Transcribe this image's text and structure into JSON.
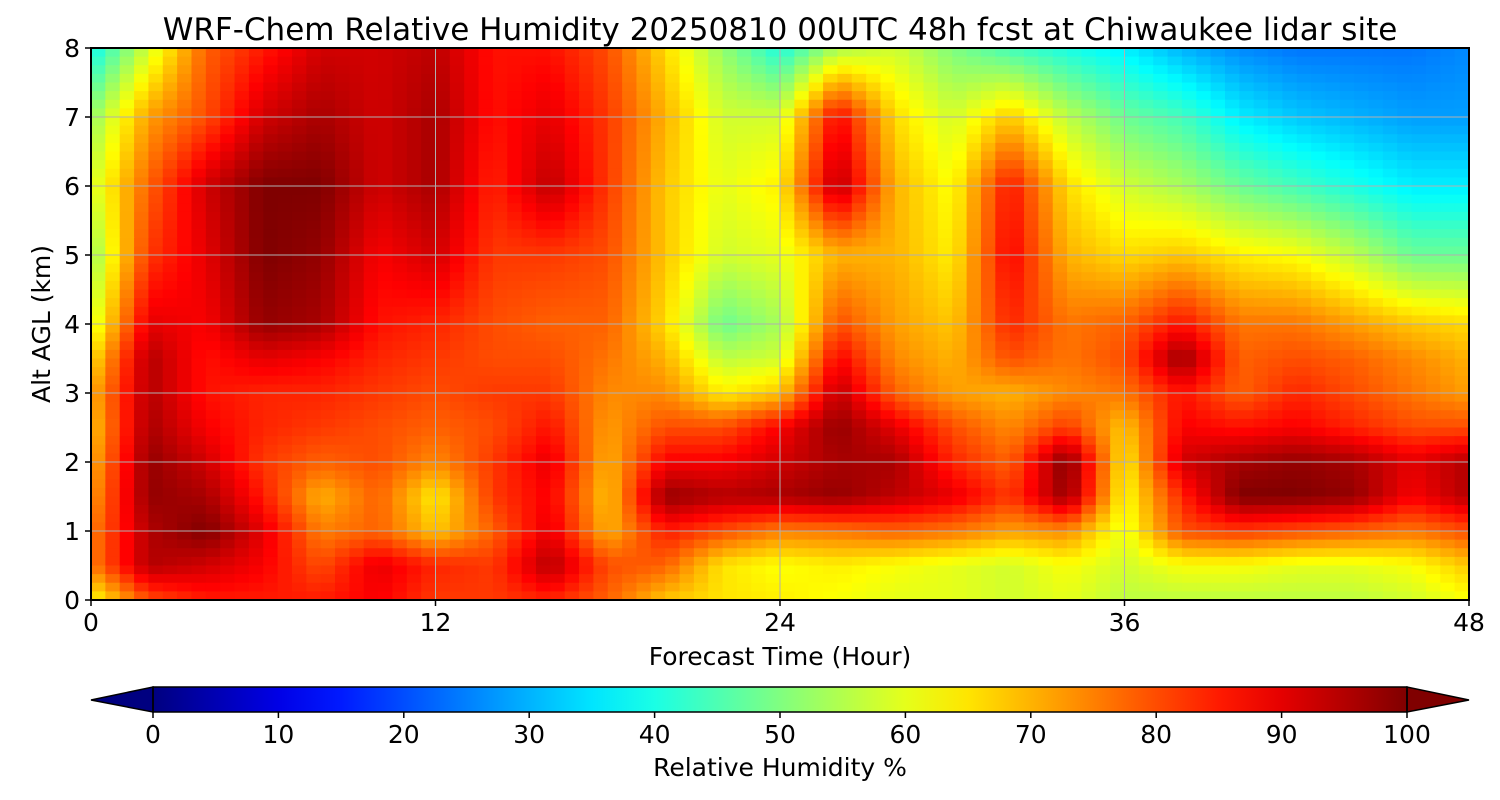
{
  "chart_data": {
    "type": "heatmap",
    "title": "WRF-Chem Relative Humidity 20250810 00UTC 48h fcst at Chiwaukee lidar site",
    "xlabel": "Forecast Time (Hour)",
    "ylabel": "Alt AGL (km)",
    "xlim": [
      0,
      48
    ],
    "ylim": [
      0,
      8
    ],
    "x_ticks": [
      "0",
      "12",
      "24",
      "36",
      "48"
    ],
    "y_ticks": [
      "0",
      "1",
      "2",
      "3",
      "4",
      "5",
      "6",
      "7",
      "8"
    ],
    "grid": true,
    "colorbar": {
      "label": "Relative Humidity %",
      "colormap": "jet",
      "range": [
        0,
        100
      ],
      "extend": "both",
      "ticks": [
        "0",
        "10",
        "20",
        "30",
        "40",
        "50",
        "60",
        "70",
        "80",
        "90",
        "100"
      ],
      "placement": "bottom"
    },
    "x_hours": [
      0,
      2,
      4,
      6,
      8,
      10,
      12,
      14,
      16,
      18,
      20,
      22,
      24,
      26,
      28,
      30,
      32,
      34,
      36,
      38,
      40,
      42,
      44,
      46,
      48
    ],
    "y_km": [
      0,
      0.5,
      1,
      1.5,
      2,
      2.5,
      3,
      3.5,
      4,
      5,
      6,
      7,
      8
    ],
    "rh_percent": [
      [
        62,
        80,
        85,
        85,
        85,
        88,
        82,
        82,
        84,
        78,
        68,
        65,
        64,
        62,
        60,
        60,
        58,
        60,
        56,
        56,
        56,
        56,
        56,
        58,
        62
      ],
      [
        75,
        95,
        92,
        88,
        80,
        90,
        84,
        82,
        95,
        80,
        78,
        65,
        62,
        64,
        62,
        60,
        58,
        62,
        58,
        62,
        62,
        60,
        60,
        62,
        68
      ],
      [
        75,
        95,
        100,
        90,
        75,
        78,
        68,
        78,
        90,
        70,
        85,
        80,
        75,
        76,
        78,
        76,
        72,
        74,
        60,
        80,
        82,
        80,
        78,
        76,
        80
      ],
      [
        72,
        98,
        96,
        85,
        70,
        78,
        64,
        82,
        88,
        68,
        98,
        95,
        96,
        98,
        94,
        90,
        82,
        98,
        62,
        84,
        100,
        100,
        98,
        88,
        95
      ],
      [
        70,
        98,
        92,
        82,
        78,
        80,
        74,
        82,
        90,
        70,
        88,
        88,
        92,
        96,
        96,
        84,
        78,
        100,
        64,
        92,
        96,
        98,
        96,
        90,
        95
      ],
      [
        68,
        96,
        88,
        84,
        82,
        80,
        78,
        80,
        86,
        72,
        80,
        80,
        88,
        98,
        90,
        80,
        74,
        82,
        68,
        88,
        86,
        88,
        84,
        80,
        80
      ],
      [
        70,
        95,
        86,
        84,
        84,
        82,
        80,
        82,
        82,
        74,
        74,
        64,
        68,
        94,
        78,
        72,
        70,
        74,
        76,
        86,
        78,
        84,
        80,
        76,
        72
      ],
      [
        65,
        95,
        86,
        90,
        88,
        84,
        82,
        80,
        80,
        76,
        70,
        56,
        58,
        88,
        74,
        70,
        80,
        76,
        80,
        98,
        78,
        80,
        78,
        74,
        70
      ],
      [
        58,
        90,
        88,
        98,
        96,
        86,
        84,
        80,
        78,
        78,
        66,
        48,
        54,
        80,
        72,
        68,
        84,
        76,
        78,
        86,
        76,
        76,
        72,
        68,
        66
      ],
      [
        52,
        82,
        90,
        100,
        98,
        88,
        92,
        82,
        82,
        80,
        68,
        58,
        60,
        70,
        70,
        64,
        88,
        70,
        66,
        68,
        64,
        62,
        56,
        48,
        48
      ],
      [
        58,
        78,
        92,
        100,
        100,
        92,
        96,
        84,
        94,
        82,
        68,
        60,
        64,
        95,
        70,
        62,
        86,
        66,
        58,
        54,
        48,
        44,
        40,
        36,
        36
      ],
      [
        52,
        72,
        80,
        92,
        96,
        92,
        96,
        86,
        90,
        82,
        70,
        58,
        58,
        88,
        66,
        58,
        68,
        56,
        48,
        44,
        36,
        32,
        30,
        28,
        28
      ],
      [
        38,
        58,
        78,
        85,
        92,
        92,
        94,
        86,
        86,
        80,
        66,
        52,
        40,
        54,
        58,
        50,
        44,
        40,
        36,
        30,
        26,
        24,
        24,
        24,
        26
      ]
    ]
  }
}
